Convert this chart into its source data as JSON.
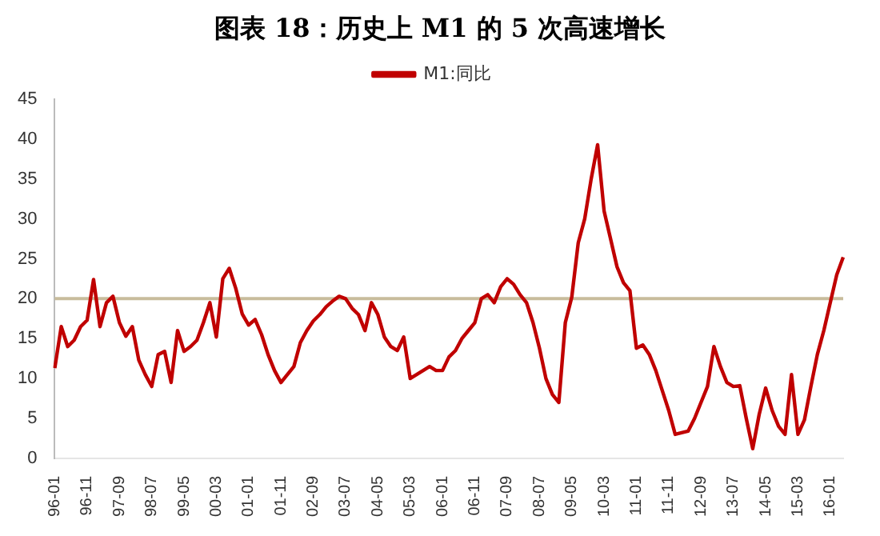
{
  "chart_data": {
    "type": "line",
    "title": "图表 18：历史上 M1 的 5 次高速增长",
    "categories": [
      "96-01",
      null,
      null,
      null,
      null,
      "96-11",
      null,
      null,
      null,
      null,
      "97-09",
      null,
      null,
      null,
      null,
      "98-07",
      null,
      null,
      null,
      null,
      "99-05",
      null,
      null,
      null,
      null,
      "00-03",
      null,
      null,
      null,
      null,
      "01-01",
      null,
      null,
      null,
      null,
      "01-11",
      null,
      null,
      null,
      null,
      "02-09",
      null,
      null,
      null,
      null,
      "03-07",
      null,
      null,
      null,
      null,
      "04-05",
      null,
      null,
      null,
      null,
      "05-03",
      null,
      null,
      null,
      null,
      "06-01",
      null,
      null,
      null,
      null,
      "06-11",
      null,
      null,
      null,
      null,
      "07-09",
      null,
      null,
      null,
      null,
      "08-07",
      null,
      null,
      null,
      null,
      "09-05",
      null,
      null,
      null,
      null,
      "10-03",
      null,
      null,
      null,
      null,
      "11-01",
      null,
      null,
      null,
      null,
      "11-11",
      null,
      null,
      null,
      null,
      "12-09",
      null,
      null,
      null,
      null,
      "13-07",
      null,
      null,
      null,
      null,
      "14-05",
      null,
      null,
      null,
      null,
      "15-03",
      null,
      null,
      null,
      null,
      "16-01",
      null,
      null
    ],
    "series": [
      {
        "name": "M1:同比",
        "color": "#c00000",
        "values": [
          11.3,
          16.5,
          14,
          14.8,
          16.5,
          17.3,
          22.4,
          16.5,
          19.5,
          20.3,
          17,
          15.3,
          16.5,
          12.3,
          10.5,
          9,
          13,
          13.4,
          9.5,
          16,
          13.4,
          14,
          14.8,
          17,
          19.5,
          15.2,
          22.5,
          23.8,
          21.3,
          18.1,
          16.7,
          17.4,
          15.5,
          13,
          11,
          9.5,
          10.5,
          11.5,
          14.5,
          16,
          17.2,
          18,
          19,
          19.7,
          20.3,
          20,
          18.8,
          18,
          16,
          19.5,
          18,
          15.2,
          14,
          13.5,
          15.2,
          10,
          10.5,
          11,
          11.5,
          11,
          11,
          12.7,
          13.5,
          15,
          16,
          17,
          20,
          20.5,
          19.5,
          21.5,
          22.5,
          21.8,
          20.5,
          19.5,
          17,
          13.8,
          10,
          8,
          7,
          17,
          20.2,
          27,
          30,
          35,
          39.3,
          31,
          27.5,
          24,
          22,
          21,
          13.8,
          14.2,
          13,
          11,
          8.5,
          6,
          3,
          3.2,
          3.4,
          5,
          7,
          9,
          14,
          11.5,
          9.5,
          9,
          9.1,
          5,
          1.2,
          5.5,
          8.8,
          6,
          4,
          3,
          10.5,
          3,
          4.8,
          9,
          13,
          16,
          19.5,
          23,
          25.2
        ]
      }
    ],
    "ylim": [
      0,
      45
    ],
    "yticks": [
      0,
      5,
      10,
      15,
      20,
      25,
      30,
      35,
      40,
      45
    ],
    "ref_lines": [
      {
        "axis": "y",
        "value": 20,
        "color": "#c8bc9c"
      }
    ],
    "legend": "top",
    "grid": false
  }
}
